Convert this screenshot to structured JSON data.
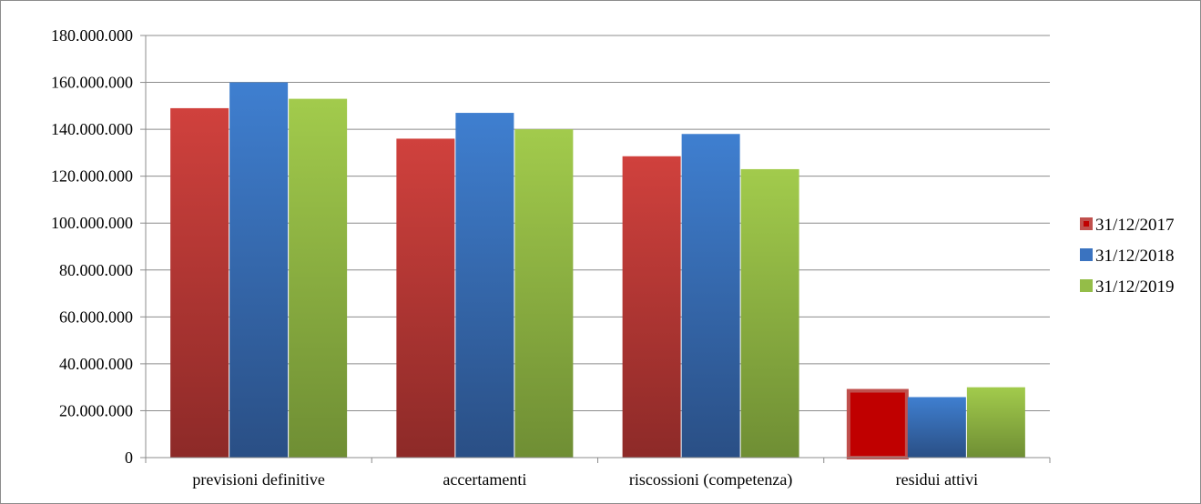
{
  "chart_data": {
    "type": "bar",
    "title": "",
    "xlabel": "",
    "ylabel": "",
    "categories": [
      "previsioni definitive",
      "accertamenti",
      "riscossioni (competenza)",
      "residui attivi"
    ],
    "series": [
      {
        "name": "31/12/2017",
        "values": [
          149000000,
          136000000,
          128500000,
          28500000
        ],
        "color": "#c0403d"
      },
      {
        "name": "31/12/2018",
        "values": [
          160000000,
          147000000,
          138000000,
          25800000
        ],
        "color": "#3a73c0"
      },
      {
        "name": "31/12/2019",
        "values": [
          153000000,
          140000000,
          123000000,
          30000000
        ],
        "color": "#94bd48"
      }
    ],
    "ylim": [
      0,
      180000000
    ],
    "yticks": [
      0,
      20000000,
      40000000,
      60000000,
      80000000,
      100000000,
      120000000,
      140000000,
      160000000,
      180000000
    ],
    "ytick_labels": [
      "0",
      "20.000.000",
      "40.000.000",
      "60.000.000",
      "80.000.000",
      "100.000.000",
      "120.000.000",
      "140.000.000",
      "160.000.000",
      "180.000.000"
    ],
    "grid": true,
    "legend_position": "right",
    "highlight": {
      "series": 0,
      "category": 3,
      "color": "#c00000"
    }
  }
}
